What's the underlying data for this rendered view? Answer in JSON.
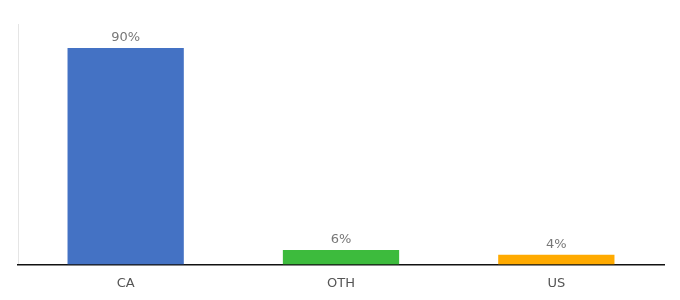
{
  "chart_data": {
    "type": "bar",
    "categories": [
      "CA",
      "OTH",
      "US"
    ],
    "values": [
      90,
      6,
      4
    ],
    "value_labels": [
      "90%",
      "6%",
      "4%"
    ],
    "colors": [
      "#4472c4",
      "#3dbb3d",
      "#ffaa00"
    ],
    "ylim": [
      0,
      100
    ],
    "grid": false,
    "tick_labels": "x",
    "data_labels": true
  }
}
